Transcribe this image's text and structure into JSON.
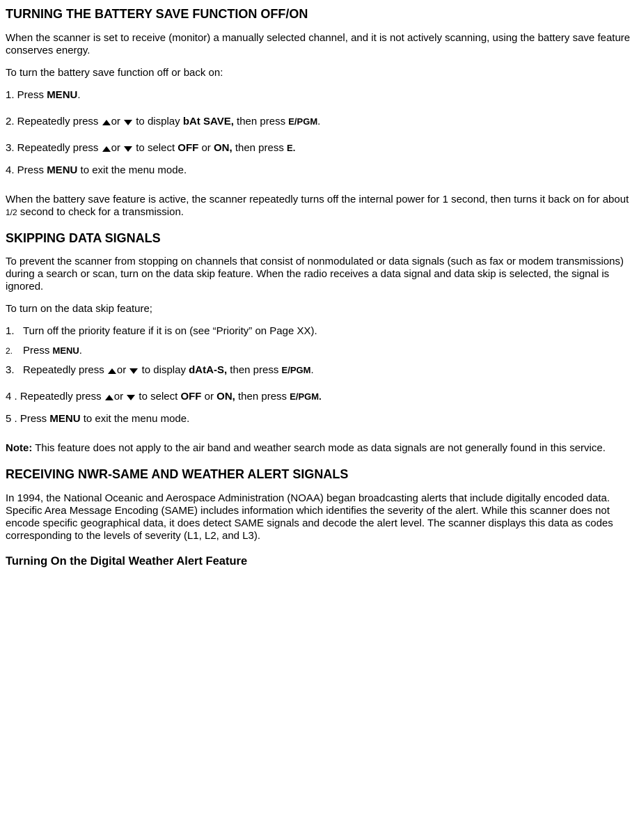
{
  "icons": {
    "up_svg": "<svg class='tri' width='14' height='10' viewBox='0 0 14 10'><polygon points='7,1 13,9 1,9' fill='#000'/></svg>",
    "down_svg": "<svg class='tri' width='14' height='10' viewBox='0 0 14 10'><polygon points='1,1 13,1 7,9' fill='#000'/></svg>"
  },
  "batt": {
    "heading": "TURNING THE BATTERY SAVE FUNCTION OFF/ON",
    "intro": "When the scanner is set to receive (monitor) a manually selected channel, and it is not actively scanning, using the battery save feature conserves energy.",
    "lead": "To turn the battery save function off or back on:",
    "s1_pre": "1. Press ",
    "menu": "MENU",
    "dot": ".",
    "s2_pre": "2. Repeatedly press  ",
    "or": "or  ",
    "s2_mid": " to display ",
    "s2_val": "bAt SAVE,",
    "s2_then": " then press ",
    "s2_key": "E/PGM",
    "s3_pre": "3. Repeatedly press  ",
    "s3_mid": " to select ",
    "off": "OFF",
    "or_word": " or ",
    "on": "ON,",
    "s3_then": " then press ",
    "s3_key": "E.",
    "s4_pre": "4. Press ",
    "s4_post": " to exit the menu mode.",
    "outro_a": "When the battery save feature is active, the scanner repeatedly turns off the internal power for 1 second, then turns it back on for about ",
    "outro_half": "1/2",
    "outro_b": " second to check for a transmission."
  },
  "ds": {
    "heading": "SKIPPING DATA SIGNALS",
    "intro": "To prevent the scanner from stopping on channels that consist of nonmodulated or data signals (such as fax or modem transmissions) during a search or scan, turn on the data skip feature. When the radio receives a data signal and data skip is selected, the signal is ignored.",
    "lead": "To turn on the data skip feature;",
    "li1": "Turn off the priority feature if it is on (see “Priority” on Page XX).",
    "li2_pre": "Press ",
    "li2_key": "MENU",
    "li2_dot": ".",
    "li3_pre": "Repeatedly press  ",
    "li3_or": "or  ",
    "li3_mid": " to display ",
    "li3_val": "dAtA-S,",
    "li3_then": " then press ",
    "li3_key": "E/PGM",
    "li3_dot": ".",
    "s4_pre": "4 . Repeatedly press  ",
    "s4_or": "or  ",
    "s4_mid": " to select ",
    "s4_then": " then press ",
    "s4_key": "E/PGM.",
    "s5_pre": "5 . Press ",
    "s5_key": "MENU",
    "s5_post": " to exit the menu mode.",
    "note_label": "Note:",
    "note_body": " This feature does not apply to the air band and weather search mode as data signals are not generally found in this service."
  },
  "wx": {
    "heading": "RECEIVING NWR-SAME AND WEATHER ALERT SIGNALS",
    "body": "In 1994, the National Oceanic and Aerospace Administration (NOAA) began broadcasting alerts that include digitally encoded data. Specific Area Message Encoding (SAME) includes information which identifies the severity of the alert. While this scanner does not encode specific geographical data, it does detect SAME signals and decode the alert level. The scanner displays this data as codes corresponding to the levels of severity (L1, L2, and L3).",
    "sub": "Turning On the Digital Weather Alert Feature"
  }
}
